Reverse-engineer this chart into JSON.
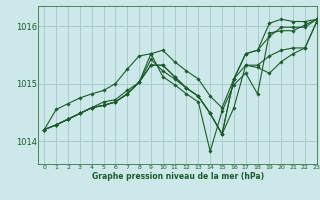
{
  "background_color": "#cce8e8",
  "grid_color": "#aacccc",
  "line_color": "#1a5c2a",
  "xlabel": "Graphe pression niveau de la mer (hPa)",
  "xlim": [
    -0.5,
    23
  ],
  "ylim": [
    1013.6,
    1016.35
  ],
  "yticks": [
    1014,
    1015,
    1016
  ],
  "xticks": [
    0,
    1,
    2,
    3,
    4,
    5,
    6,
    7,
    8,
    9,
    10,
    11,
    12,
    13,
    14,
    15,
    16,
    17,
    18,
    19,
    20,
    21,
    22,
    23
  ],
  "series": [
    [
      1014.2,
      1014.55,
      1014.65,
      1014.75,
      1014.82,
      1014.88,
      1015.0,
      1015.25,
      1015.48,
      1015.52,
      1015.58,
      1015.38,
      1015.22,
      1015.08,
      1014.78,
      1014.58,
      1015.08,
      1015.32,
      1015.28,
      1015.18,
      1015.38,
      1015.52,
      1015.62,
      1016.08
    ],
    [
      1014.2,
      1014.28,
      1014.38,
      1014.48,
      1014.58,
      1014.68,
      1014.72,
      1014.88,
      1015.02,
      1015.52,
      1015.12,
      1014.98,
      1014.82,
      1014.68,
      1013.82,
      1014.52,
      1014.98,
      1015.18,
      1014.82,
      1015.88,
      1015.92,
      1015.92,
      1016.02,
      1016.12
    ],
    [
      1014.2,
      1014.28,
      1014.38,
      1014.48,
      1014.58,
      1014.62,
      1014.68,
      1014.82,
      1015.02,
      1015.42,
      1015.22,
      1015.08,
      1014.92,
      1014.78,
      1014.48,
      1014.12,
      1014.58,
      1015.32,
      1015.32,
      1015.48,
      1015.58,
      1015.62,
      1015.62,
      1016.08
    ],
    [
      1014.2,
      1014.28,
      1014.38,
      1014.48,
      1014.58,
      1014.62,
      1014.68,
      1014.82,
      1015.02,
      1015.32,
      1015.32,
      1015.12,
      1014.92,
      1014.78,
      1014.48,
      1014.12,
      1015.08,
      1015.52,
      1015.58,
      1015.82,
      1015.98,
      1015.98,
      1015.98,
      1016.12
    ],
    [
      1014.2,
      1014.28,
      1014.38,
      1014.48,
      1014.58,
      1014.62,
      1014.68,
      1014.82,
      1015.02,
      1015.32,
      1015.32,
      1015.12,
      1014.92,
      1014.78,
      1014.48,
      1014.12,
      1015.08,
      1015.52,
      1015.58,
      1016.05,
      1016.12,
      1016.08,
      1016.08,
      1016.12
    ]
  ]
}
